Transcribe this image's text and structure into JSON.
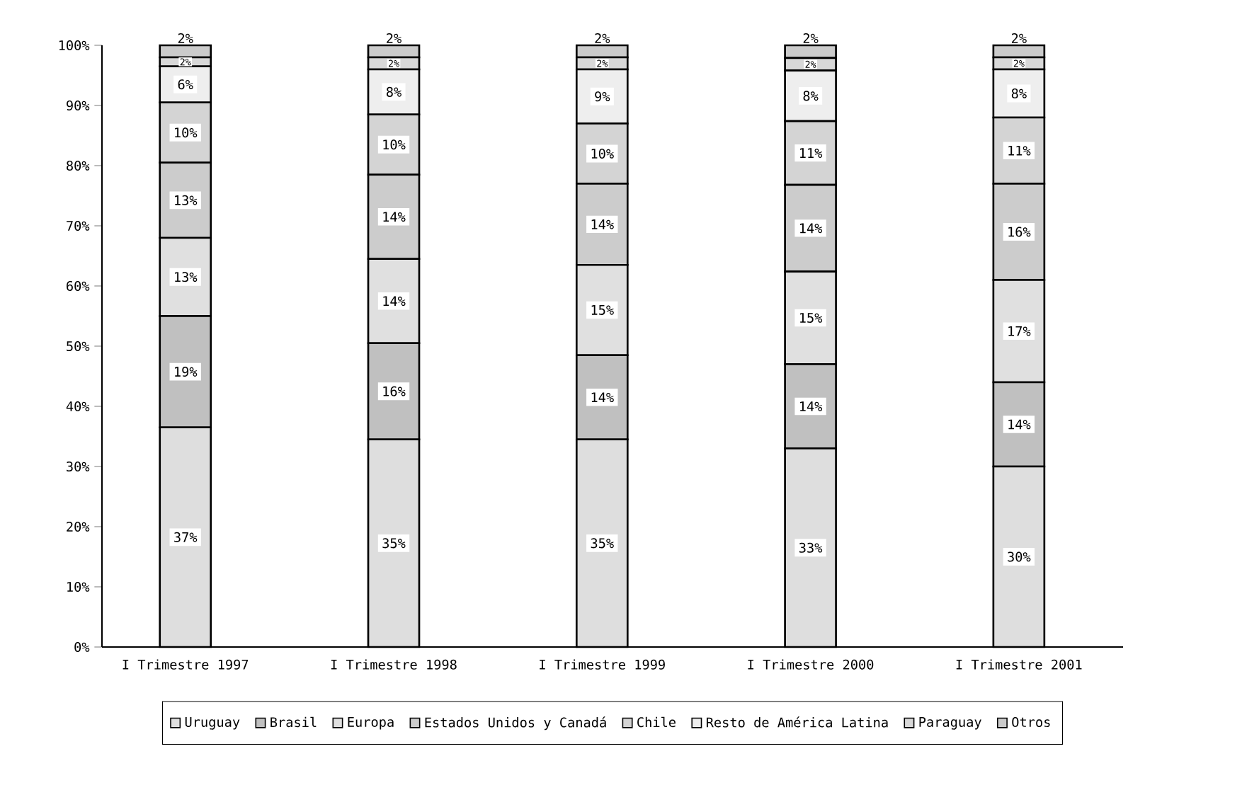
{
  "chart_data": {
    "type": "bar",
    "stacked": true,
    "categories": [
      "I Trimestre 1997",
      "I Trimestre 1998",
      "I Trimestre 1999",
      "I Trimestre 2000",
      "I Trimestre 2001"
    ],
    "ylim": [
      0,
      100
    ],
    "yticks": [
      {
        "value": 0,
        "label": "0%"
      },
      {
        "value": 10,
        "label": "10%"
      },
      {
        "value": 20,
        "label": "20%"
      },
      {
        "value": 30,
        "label": "30%"
      },
      {
        "value": 40,
        "label": "40%"
      },
      {
        "value": 50,
        "label": "50%"
      },
      {
        "value": 60,
        "label": "60%"
      },
      {
        "value": 70,
        "label": "70%"
      },
      {
        "value": 80,
        "label": "80%"
      },
      {
        "value": 90,
        "label": "90%"
      },
      {
        "value": 100,
        "label": "100%"
      }
    ],
    "grid": false,
    "legend": "bottom",
    "series": [
      {
        "name": "Uruguay",
        "color": "#dedede",
        "values": [
          36.5,
          34.5,
          34.5,
          33,
          30
        ],
        "value_labels": [
          "37%",
          "35%",
          "35%",
          "33%",
          "30%"
        ]
      },
      {
        "name": "Brasil",
        "color": "#c0c0c0",
        "values": [
          18.5,
          16,
          14,
          14,
          14
        ],
        "value_labels": [
          "19%",
          "16%",
          "14%",
          "14%",
          "14%"
        ]
      },
      {
        "name": "Europa",
        "color": "#e0e0e0",
        "values": [
          13,
          14,
          15,
          15.4,
          17
        ],
        "value_labels": [
          "13%",
          "14%",
          "15%",
          "15%",
          "17%"
        ]
      },
      {
        "name": "Estados Unidos y Canadá",
        "color": "#cccccc",
        "values": [
          12.5,
          14,
          13.5,
          14.4,
          16
        ],
        "value_labels": [
          "13%",
          "14%",
          "14%",
          "14%",
          "16%"
        ]
      },
      {
        "name": "Chile",
        "color": "#d4d4d4",
        "values": [
          10,
          10,
          10,
          10.6,
          11
        ],
        "value_labels": [
          "10%",
          "10%",
          "10%",
          "11%",
          "11%"
        ]
      },
      {
        "name": "Resto de América Latina",
        "color": "#eeeeee",
        "values": [
          6,
          7.5,
          9,
          8.4,
          8
        ],
        "value_labels": [
          "6%",
          "8%",
          "9%",
          "8%",
          "8%"
        ]
      },
      {
        "name": "Paraguay",
        "color": "#d8d8d8",
        "values": [
          1.5,
          2,
          2,
          2.1,
          2
        ],
        "value_labels": [
          "2%",
          "2%",
          "2%",
          "2%",
          "2%"
        ]
      },
      {
        "name": "Otros",
        "color": "#cbcbcb",
        "values": [
          2,
          2,
          2,
          2.1,
          2
        ],
        "value_labels": [
          "2%",
          "2%",
          "2%",
          "2%",
          "2%"
        ]
      }
    ]
  }
}
